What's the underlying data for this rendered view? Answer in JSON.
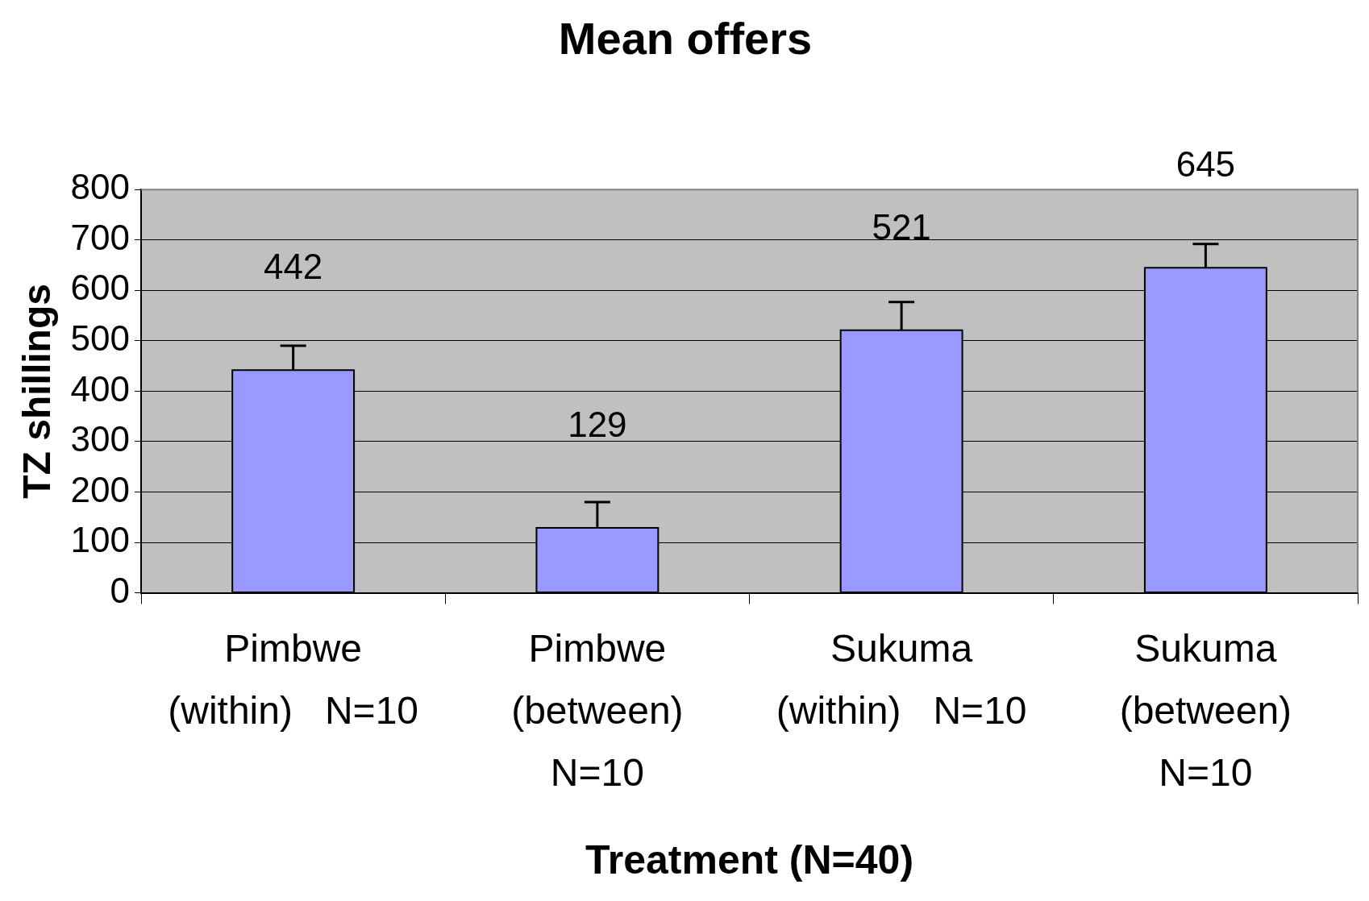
{
  "chart_data": {
    "type": "bar",
    "title": "Mean offers",
    "xlabel": "Treatment (N=40)",
    "ylabel": "TZ shillings",
    "categories": [
      "Pimbwe\n(within)   N=10",
      "Pimbwe\n(between)\nN=10",
      "Sukuma\n(within)   N=10",
      "Sukuma\n(between)\nN=10"
    ],
    "values": [
      442,
      129,
      521,
      645
    ],
    "errors": [
      [
        442,
        490
      ],
      [
        129,
        180
      ],
      [
        521,
        577
      ],
      [
        645,
        692
      ]
    ],
    "color": "#9999ff",
    "ylim": [
      0,
      800
    ],
    "yticks": [
      0,
      100,
      200,
      300,
      400,
      500,
      600,
      700,
      800
    ],
    "grid": "y",
    "data_labels": true,
    "legend": false
  }
}
